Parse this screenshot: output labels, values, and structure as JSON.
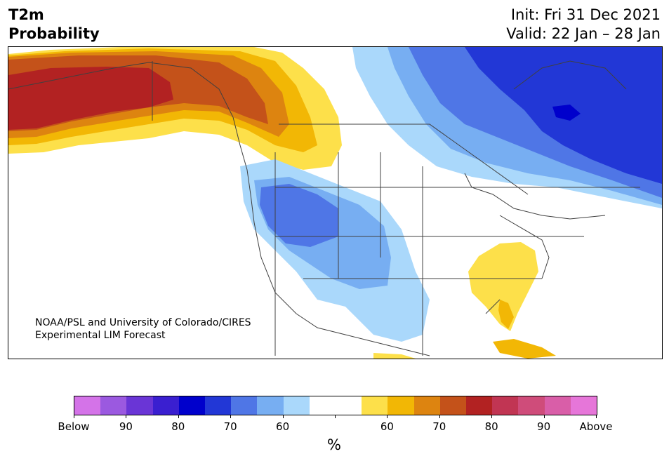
{
  "header": {
    "title_line1": "T2m",
    "title_line2": "Probability",
    "init": "Init: Fri 31 Dec 2021",
    "valid": "Valid: 22 Jan – 28 Jan"
  },
  "credit": {
    "line1": "NOAA/PSL and University of Colorado/CIRES",
    "line2": "Experimental LIM Forecast"
  },
  "colorbar": {
    "unit_label": "%",
    "colors": [
      "#d473e8",
      "#9b59e0",
      "#6a35d6",
      "#3a1fd0",
      "#0000cc",
      "#2237d6",
      "#4f76e6",
      "#77aef2",
      "#aad8fb",
      "#ffffff",
      "#ffffff",
      "#fde04a",
      "#f2b705",
      "#dd8410",
      "#c4521a",
      "#b22222",
      "#c13553",
      "#cf4c7a",
      "#d95ea8",
      "#e676d9"
    ],
    "tick_labels": [
      "Below",
      "90",
      "80",
      "70",
      "60",
      "",
      "60",
      "70",
      "80",
      "90",
      "Above"
    ]
  }
}
